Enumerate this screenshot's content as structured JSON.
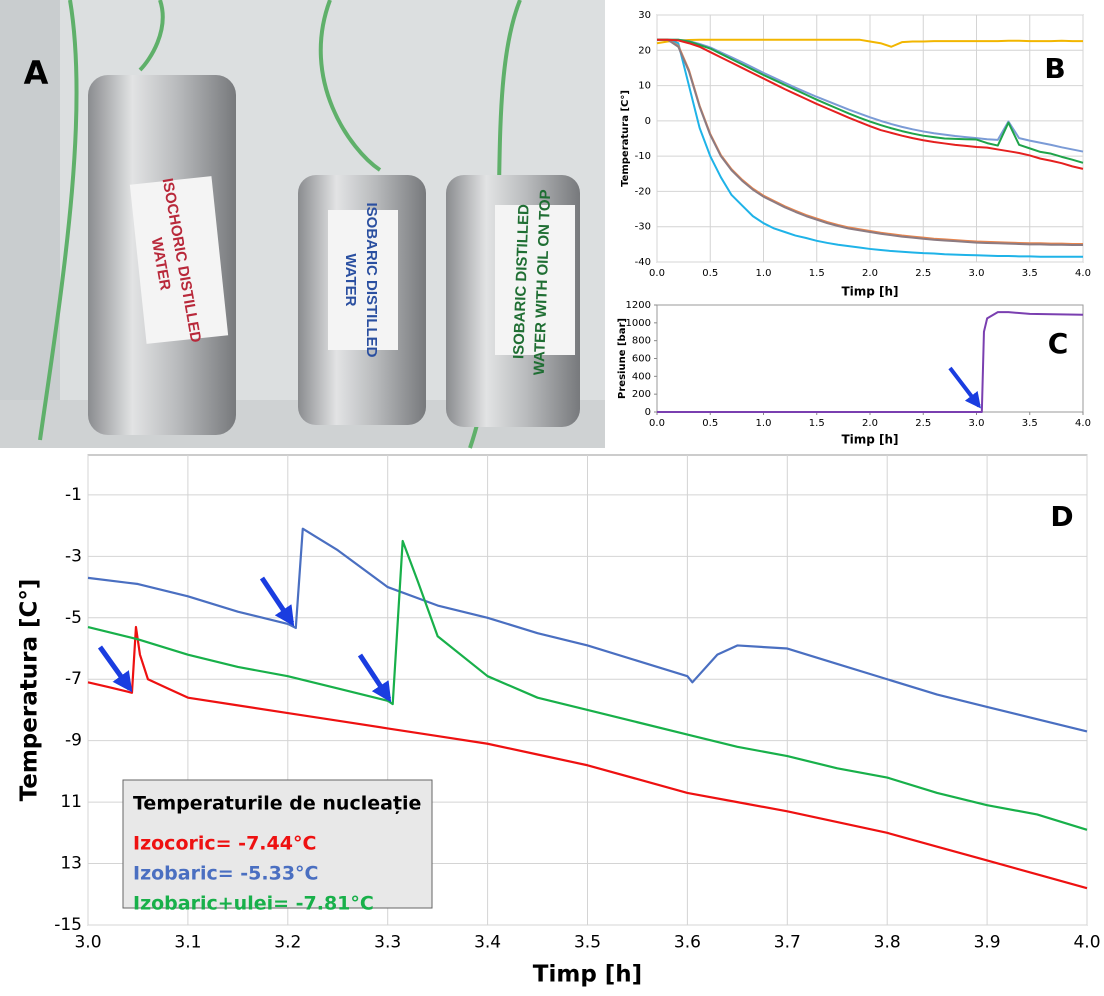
{
  "photo": {
    "panel_label": "A",
    "labels": [
      [
        "ISOCHORIC DISTILLED",
        "WATER"
      ],
      [
        "ISOBARIC DISTILLED",
        "WATER"
      ],
      [
        "ISOBARIC DISTILLED",
        "WATER WITH OIL ON TOP"
      ]
    ]
  },
  "chart_data": [
    {
      "type": "line",
      "panel_label": "B",
      "xlabel": "Timp [h]",
      "ylabel": "Temperatura [C°]",
      "grid": true,
      "xlim": [
        0,
        4
      ],
      "ylim": [
        -40,
        30
      ],
      "xticks": [
        {
          "value": 0,
          "label": "0.0"
        },
        0.5,
        {
          "value": 1,
          "label": "1.0"
        },
        1.5,
        {
          "value": 2,
          "label": "2.0"
        },
        2.5,
        {
          "value": 3,
          "label": "3.0"
        },
        3.5,
        {
          "value": 4,
          "label": "4.0"
        }
      ],
      "yticks": [
        -40,
        -30,
        -20,
        -10,
        0,
        10,
        20,
        30
      ],
      "x": [
        0,
        0.1,
        0.2,
        0.3,
        0.4,
        0.5,
        0.6,
        0.7,
        0.8,
        0.9,
        1.0,
        1.1,
        1.2,
        1.3,
        1.4,
        1.5,
        1.6,
        1.7,
        1.8,
        1.9,
        2.0,
        2.1,
        2.2,
        2.3,
        2.4,
        2.5,
        2.6,
        2.7,
        2.8,
        2.9,
        3.0,
        3.1,
        3.2,
        3.3,
        3.4,
        3.5,
        3.6,
        3.7,
        3.8,
        3.9,
        4.0
      ],
      "series": [
        {
          "color": "#f2b600",
          "values": [
            22,
            22.5,
            22.8,
            22.9,
            23,
            23,
            23,
            23,
            23,
            23,
            23,
            23,
            23,
            23,
            23,
            23,
            23,
            23,
            23,
            23,
            22.5,
            22,
            21,
            22.3,
            22.5,
            22.5,
            22.6,
            22.6,
            22.6,
            22.6,
            22.6,
            22.6,
            22.6,
            22.7,
            22.7,
            22.6,
            22.6,
            22.6,
            22.7,
            22.6,
            22.6
          ]
        },
        {
          "color": "#1fb3e8",
          "values": [
            23,
            23,
            22,
            10,
            -2,
            -10,
            -16,
            -21,
            -24,
            -27,
            -29,
            -30.5,
            -31.5,
            -32.5,
            -33.2,
            -34,
            -34.6,
            -35.1,
            -35.5,
            -35.9,
            -36.3,
            -36.6,
            -36.9,
            -37.1,
            -37.3,
            -37.5,
            -37.6,
            -37.8,
            -37.9,
            -38,
            -38.1,
            -38.2,
            -38.3,
            -38.3,
            -38.4,
            -38.4,
            -38.5,
            -38.5,
            -38.5,
            -38.5,
            -38.5
          ]
        },
        {
          "color": "#e8854d",
          "values": [
            23,
            23,
            21.3,
            14.4,
            4.3,
            -3.7,
            -9.7,
            -13.7,
            -16.7,
            -19.2,
            -21.2,
            -22.7,
            -24.2,
            -25.5,
            -26.7,
            -27.7,
            -28.7,
            -29.5,
            -30.2,
            -30.7,
            -31.2,
            -31.7,
            -32.1,
            -32.5,
            -32.8,
            -33.1,
            -33.4,
            -33.6,
            -33.8,
            -34,
            -34.2,
            -34.3,
            -34.4,
            -34.5,
            -34.6,
            -34.7,
            -34.7,
            -34.8,
            -34.8,
            -34.9,
            -34.9
          ]
        },
        {
          "color": "#8c7b82",
          "values": [
            23,
            23,
            21,
            14,
            4,
            -4,
            -10,
            -14,
            -17,
            -19.5,
            -21.5,
            -23,
            -24.5,
            -25.8,
            -27,
            -28,
            -29,
            -29.8,
            -30.5,
            -31,
            -31.5,
            -32,
            -32.4,
            -32.8,
            -33.1,
            -33.4,
            -33.7,
            -33.9,
            -34.1,
            -34.3,
            -34.5,
            -34.6,
            -34.7,
            -34.8,
            -34.9,
            -35,
            -35,
            -35.1,
            -35.1,
            -35.2,
            -35.2
          ]
        },
        {
          "color": "#7b9bd6",
          "values": [
            23,
            23,
            23,
            22.6,
            21.8,
            20.8,
            19.4,
            18,
            16.6,
            15.1,
            13.6,
            12.2,
            10.8,
            9.4,
            8.1,
            6.8,
            5.6,
            4.4,
            3.2,
            2.1,
            1,
            0,
            -0.9,
            -1.7,
            -2.4,
            -3,
            -3.5,
            -3.9,
            -4.3,
            -4.6,
            -4.9,
            -5.2,
            -5.4,
            -0.2,
            -4.9,
            -5.6,
            -6.2,
            -6.8,
            -7.5,
            -8.1,
            -8.7
          ]
        },
        {
          "color": "#1fa34a",
          "values": [
            23,
            23,
            23,
            22.5,
            21.5,
            20.5,
            19,
            17.5,
            16,
            14.5,
            13,
            11.6,
            10.2,
            8.8,
            7.4,
            6,
            4.7,
            3.4,
            2.1,
            0.9,
            -0.2,
            -1.2,
            -2.1,
            -2.9,
            -3.6,
            -4.2,
            -4.6,
            -5,
            -5.1,
            -5.2,
            -5.3,
            -6.3,
            -7,
            -0.5,
            -6.8,
            -7.8,
            -8.8,
            -9.3,
            -10.2,
            -11,
            -11.9
          ]
        },
        {
          "color": "#e5201f",
          "values": [
            23,
            23,
            22.8,
            22,
            21,
            19.5,
            18,
            16.5,
            15,
            13.5,
            12,
            10.5,
            9,
            7.6,
            6.2,
            4.8,
            3.5,
            2.2,
            0.9,
            -0.3,
            -1.5,
            -2.6,
            -3.4,
            -4.2,
            -4.9,
            -5.5,
            -6,
            -6.4,
            -6.8,
            -7.1,
            -7.4,
            -7.6,
            -8.1,
            -8.6,
            -9.1,
            -9.8,
            -10.7,
            -11.3,
            -12,
            -12.9,
            -13.6
          ]
        }
      ]
    },
    {
      "type": "line",
      "panel_label": "C",
      "xlabel": "Timp [h]",
      "ylabel": "Presiune [bar]",
      "grid": false,
      "xlim": [
        0,
        4
      ],
      "ylim": [
        0,
        1200
      ],
      "xticks": [
        {
          "value": 0,
          "label": "0.0"
        },
        0.5,
        {
          "value": 1,
          "label": "1.0"
        },
        1.5,
        {
          "value": 2,
          "label": "2.0"
        },
        2.5,
        {
          "value": 3,
          "label": "3.0"
        },
        3.5,
        {
          "value": 4,
          "label": "4.0"
        }
      ],
      "yticks": [
        0,
        200,
        400,
        600,
        800,
        1000,
        1200
      ],
      "x": [
        0,
        3.05,
        3.07,
        3.1,
        3.2,
        3.3,
        3.5,
        4.0
      ],
      "series": [
        {
          "color": "#7a3fb0",
          "values": [
            0,
            0,
            900,
            1050,
            1120,
            1120,
            1100,
            1090
          ]
        }
      ]
    },
    {
      "type": "line",
      "panel_label": "D",
      "xlabel": "Timp [h]",
      "ylabel": "Temperatura [C°]",
      "grid": true,
      "xlim": [
        3,
        4
      ],
      "ylim": [
        -15,
        0.3
      ],
      "xticks": [
        {
          "value": 3,
          "label": "3.0"
        },
        3.1,
        3.2,
        3.3,
        3.4,
        3.5,
        3.6,
        3.7,
        3.8,
        3.9,
        {
          "value": 4,
          "label": "4.0"
        }
      ],
      "yticks": [
        -15,
        {
          "value": -13,
          "label": "13"
        },
        {
          "value": -11,
          "label": "11"
        },
        -9,
        -7,
        -5,
        -3,
        -1
      ],
      "legend": "lower left",
      "legend_title": "Temperaturile de nucleație",
      "series": [
        {
          "name": "Izocoric= -7.44°C",
          "color": "#ee1111",
          "x": [
            3.0,
            3.02,
            3.044,
            3.048,
            3.052,
            3.06,
            3.08,
            3.1,
            3.15,
            3.2,
            3.25,
            3.3,
            3.35,
            3.4,
            3.45,
            3.5,
            3.55,
            3.6,
            3.65,
            3.7,
            3.75,
            3.8,
            3.85,
            3.9,
            3.95,
            4.0
          ],
          "values": [
            -7.1,
            -7.25,
            -7.44,
            -5.3,
            -6.2,
            -7.0,
            -7.3,
            -7.6,
            -7.85,
            -8.1,
            -8.35,
            -8.6,
            -8.85,
            -9.1,
            -9.45,
            -9.8,
            -10.25,
            -10.7,
            -11.0,
            -11.3,
            -11.65,
            -12.0,
            -12.45,
            -12.9,
            -13.35,
            -13.8
          ]
        },
        {
          "name": "Izobaric= -5.33°C",
          "color": "#4a6fc1",
          "x": [
            3.0,
            3.05,
            3.1,
            3.15,
            3.2,
            3.208,
            3.215,
            3.23,
            3.25,
            3.3,
            3.35,
            3.4,
            3.45,
            3.5,
            3.55,
            3.6,
            3.605,
            3.63,
            3.65,
            3.7,
            3.75,
            3.8,
            3.85,
            3.9,
            3.95,
            4.0
          ],
          "values": [
            -3.7,
            -3.9,
            -4.3,
            -4.8,
            -5.2,
            -5.33,
            -2.1,
            -2.4,
            -2.8,
            -4.0,
            -4.6,
            -5.0,
            -5.5,
            -5.9,
            -6.4,
            -6.9,
            -7.1,
            -6.2,
            -5.9,
            -6.0,
            -6.5,
            -7.0,
            -7.5,
            -7.9,
            -8.3,
            -8.7
          ]
        },
        {
          "name": "Izobaric+ulei= -7.81°C",
          "color": "#18b04a",
          "x": [
            3.0,
            3.05,
            3.1,
            3.15,
            3.2,
            3.25,
            3.3,
            3.305,
            3.315,
            3.33,
            3.35,
            3.4,
            3.45,
            3.5,
            3.55,
            3.6,
            3.65,
            3.7,
            3.75,
            3.8,
            3.85,
            3.9,
            3.95,
            4.0
          ],
          "values": [
            -5.3,
            -5.7,
            -6.2,
            -6.6,
            -6.9,
            -7.3,
            -7.7,
            -7.81,
            -2.5,
            -3.8,
            -5.6,
            -6.9,
            -7.6,
            -8.0,
            -8.4,
            -8.8,
            -9.2,
            -9.5,
            -9.9,
            -10.2,
            -10.7,
            -11.1,
            -11.4,
            -11.9
          ]
        }
      ]
    }
  ]
}
